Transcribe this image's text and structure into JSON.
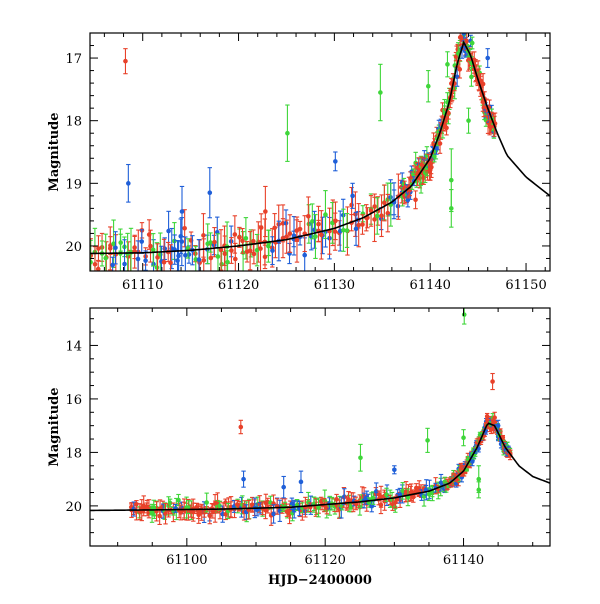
{
  "chart_data": [
    {
      "type": "scatter",
      "id": "top",
      "title": "",
      "xlabel": "",
      "ylabel": "Magnitude",
      "xlim": [
        61104.5,
        61152.5
      ],
      "ylim": [
        20.4,
        16.6
      ],
      "y_inverted": true,
      "x_ticks": [
        61110,
        61120,
        61130,
        61140,
        61150
      ],
      "x_tick_labels": [
        "61110",
        "61120",
        "61130",
        "61140",
        "61150"
      ],
      "y_ticks": [
        17,
        18,
        19,
        20
      ],
      "y_tick_labels": [
        "17",
        "18",
        "19",
        "20"
      ],
      "series": [
        {
          "name": "red",
          "color": "#e8412a"
        },
        {
          "name": "blue",
          "color": "#1f5fd8"
        },
        {
          "name": "green",
          "color": "#3fd63a"
        }
      ],
      "model": {
        "name": "model-curve",
        "x": [
          61104.5,
          61110,
          61115,
          61120,
          61125,
          61130,
          61133,
          61136,
          61138,
          61140,
          61141,
          61142,
          61142.8,
          61143.5,
          61144.2,
          61145,
          61146,
          61147,
          61148,
          61150,
          61152.5
        ],
        "y": [
          20.12,
          20.11,
          20.07,
          20.0,
          19.9,
          19.72,
          19.55,
          19.3,
          19.05,
          18.6,
          18.2,
          17.7,
          17.1,
          16.75,
          16.95,
          17.35,
          17.8,
          18.2,
          18.55,
          18.9,
          19.2
        ]
      },
      "outliers": [
        {
          "series": "red",
          "x": 61108.2,
          "y": 17.05,
          "err": 0.2
        },
        {
          "series": "blue",
          "x": 61108.5,
          "y": 19.0,
          "err": 0.3
        },
        {
          "series": "blue",
          "x": 61114.1,
          "y": 19.45,
          "err": 0.4
        },
        {
          "series": "blue",
          "x": 61117.0,
          "y": 19.15,
          "err": 0.4
        },
        {
          "series": "red",
          "x": 61122.8,
          "y": 19.45,
          "err": 0.4
        },
        {
          "series": "green",
          "x": 61125.1,
          "y": 18.2,
          "err": 0.45
        },
        {
          "series": "blue",
          "x": 61130.1,
          "y": 18.65,
          "err": 0.15
        },
        {
          "series": "blue",
          "x": 61131.9,
          "y": 19.2,
          "err": 0.2
        },
        {
          "series": "green",
          "x": 61134.8,
          "y": 17.55,
          "err": 0.45
        },
        {
          "series": "green",
          "x": 61139.8,
          "y": 17.45,
          "err": 0.25
        },
        {
          "series": "green",
          "x": 61141.8,
          "y": 17.1,
          "err": 0.2
        },
        {
          "series": "green",
          "x": 61142.2,
          "y": 18.95,
          "err": 0.5
        },
        {
          "series": "green",
          "x": 61142.2,
          "y": 19.4,
          "err": 0.3
        },
        {
          "series": "green",
          "x": 61144.0,
          "y": 18.0,
          "err": 0.2
        },
        {
          "series": "green",
          "x": 61144.3,
          "y": 17.3,
          "err": 0.15
        },
        {
          "series": "blue",
          "x": 61146.0,
          "y": 17.0,
          "err": 0.15
        },
        {
          "series": "red",
          "x": 61145.5,
          "y": 17.7,
          "err": 0.15
        },
        {
          "series": "red",
          "x": 61146.3,
          "y": 18.1,
          "err": 0.1
        }
      ]
    },
    {
      "type": "scatter",
      "id": "bottom",
      "title": "",
      "xlabel": "HJD−2400000",
      "ylabel": "Magnitude",
      "xlim": [
        61086,
        61152.5
      ],
      "ylim": [
        21.5,
        12.6
      ],
      "y_inverted": true,
      "x_ticks": [
        61100,
        61120,
        61140
      ],
      "x_tick_labels": [
        "61100",
        "61120",
        "61140"
      ],
      "y_ticks": [
        14,
        16,
        18,
        20
      ],
      "y_tick_labels": [
        "14",
        "16",
        "18",
        "20"
      ],
      "series": [
        {
          "name": "red",
          "color": "#e8412a"
        },
        {
          "name": "blue",
          "color": "#1f5fd8"
        },
        {
          "name": "green",
          "color": "#3fd63a"
        }
      ],
      "model": {
        "name": "model-curve",
        "x": [
          61086,
          61095,
          61105,
          61115,
          61125,
          61130,
          61135,
          61138,
          61140,
          61142,
          61143.5,
          61144.5,
          61146,
          61148,
          61150,
          61152.5
        ],
        "y": [
          20.17,
          20.15,
          20.12,
          20.05,
          19.85,
          19.7,
          19.45,
          19.15,
          18.7,
          17.8,
          16.9,
          17.0,
          17.8,
          18.5,
          18.9,
          19.15
        ]
      },
      "outliers": [
        {
          "series": "red",
          "x": 61107.8,
          "y": 17.05,
          "err": 0.25
        },
        {
          "series": "blue",
          "x": 61108.2,
          "y": 19.0,
          "err": 0.3
        },
        {
          "series": "blue",
          "x": 61114.0,
          "y": 19.3,
          "err": 0.4
        },
        {
          "series": "blue",
          "x": 61116.5,
          "y": 19.1,
          "err": 0.4
        },
        {
          "series": "green",
          "x": 61125.1,
          "y": 18.2,
          "err": 0.5
        },
        {
          "series": "blue",
          "x": 61130.0,
          "y": 18.65,
          "err": 0.15
        },
        {
          "series": "green",
          "x": 61134.8,
          "y": 17.55,
          "err": 0.45
        },
        {
          "series": "green",
          "x": 61140.1,
          "y": 12.85,
          "err": 0.35
        },
        {
          "series": "green",
          "x": 61140.0,
          "y": 17.45,
          "err": 0.3
        },
        {
          "series": "red",
          "x": 61144.2,
          "y": 15.35,
          "err": 0.3
        },
        {
          "series": "green",
          "x": 61142.2,
          "y": 19.0,
          "err": 0.5
        },
        {
          "series": "green",
          "x": 61142.2,
          "y": 19.4,
          "err": 0.3
        },
        {
          "series": "red",
          "x": 61144.5,
          "y": 16.7,
          "err": 0.2
        },
        {
          "series": "blue",
          "x": 61145.0,
          "y": 17.0,
          "err": 0.2
        }
      ]
    }
  ]
}
